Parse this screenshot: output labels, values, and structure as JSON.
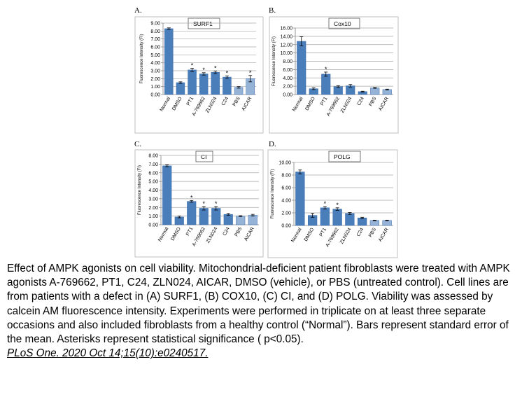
{
  "caption": {
    "text": "Effect of AMPK agonists on cell viability. Mitochondrial-deficient patient fibroblasts were treated with AMPK agonists A-769662, PT1, C24, ZLN024, AICAR, DMSO (vehicle), or PBS (untreated control). Cell lines are from patients with a defect in (A) SURF1, (B) COX10, (C) CI, and (D) POLG. Viability was assessed by calcein AM fluorescence intensity. Experiments were performed in triplicate on at least three separate occasions and also included fibroblasts from a healthy control (“Normal”). Bars represent standard error of the mean. Asterisks represent statistical significance ( p<0.05).",
    "citation": "PLoS One. 2020 Oct 14;15(10):e0240517."
  },
  "colors": {
    "dark_bar": "#4a7ebb",
    "light_bar": "#95b3d7",
    "axis": "#808080",
    "grid": "#a6a6a6",
    "border": "#bfbfbf"
  },
  "chart_data": [
    {
      "panel": "A.",
      "type": "bar",
      "title": "SURF1",
      "ylabel": "Fluorescence Intensity (FI)",
      "ylim": [
        0,
        9
      ],
      "yticks": [
        "0.00",
        "1.00",
        "2.00",
        "3.00",
        "4.00",
        "5.00",
        "6.00",
        "7.00",
        "8.00",
        "9.00"
      ],
      "categories": [
        "Normal",
        "DMSO",
        "PT1",
        "A-769662",
        "ZLN024",
        "C24",
        "PBS",
        "AICAR"
      ],
      "values": [
        8.3,
        1.5,
        3.1,
        2.6,
        2.8,
        2.2,
        0.9,
        2.0
      ],
      "errors": [
        0.1,
        0.1,
        0.2,
        0.15,
        0.15,
        0.15,
        0.1,
        0.4
      ],
      "significant": [
        false,
        false,
        true,
        true,
        true,
        true,
        false,
        true
      ],
      "shade": [
        "dark",
        "dark",
        "dark",
        "dark",
        "dark",
        "dark",
        "light",
        "light"
      ]
    },
    {
      "panel": "B.",
      "type": "bar",
      "title": "Cox10",
      "ylabel": "Fluorescence Intensity (FI)",
      "ylim": [
        0,
        16
      ],
      "yticks": [
        "0.00",
        "2.00",
        "4.00",
        "6.00",
        "8.00",
        "10.00",
        "12.00",
        "14.00",
        "16.00"
      ],
      "categories": [
        "Normal",
        "DMSO",
        "PT1",
        "A-769662",
        "ZLN024",
        "C24",
        "PBS",
        "AICAR"
      ],
      "values": [
        12.8,
        1.4,
        4.9,
        1.9,
        2.1,
        0.7,
        1.6,
        1.2
      ],
      "errors": [
        1.1,
        0.2,
        0.5,
        0.2,
        0.3,
        0.1,
        0.1,
        0.1
      ],
      "significant": [
        false,
        false,
        true,
        false,
        false,
        false,
        false,
        false
      ],
      "shade": [
        "dark",
        "dark",
        "dark",
        "dark",
        "dark",
        "dark",
        "light",
        "light"
      ]
    },
    {
      "panel": "C.",
      "type": "bar",
      "title": "CI",
      "ylabel": "Fluorescence Intensity (FI)",
      "ylim": [
        0,
        8
      ],
      "yticks": [
        "0.00",
        "1.00",
        "2.00",
        "3.00",
        "4.00",
        "5.00",
        "6.00",
        "7.00",
        "8.00"
      ],
      "categories": [
        "Normal",
        "DMSO",
        "PT1",
        "A-769662",
        "ZLN024",
        "C24",
        "PBS",
        "AICAR"
      ],
      "values": [
        6.8,
        0.9,
        2.7,
        1.9,
        1.9,
        1.2,
        1.0,
        1.1
      ],
      "errors": [
        0.1,
        0.1,
        0.1,
        0.2,
        0.2,
        0.1,
        0.05,
        0.1
      ],
      "significant": [
        false,
        false,
        true,
        true,
        true,
        false,
        false,
        false
      ],
      "shade": [
        "dark",
        "dark",
        "dark",
        "dark",
        "dark",
        "dark",
        "light",
        "light"
      ]
    },
    {
      "panel": "D.",
      "type": "bar",
      "title": "POLG",
      "ylabel": "Fluorescence Intensity (FI)",
      "ylim": [
        0,
        10
      ],
      "yticks": [
        "0.00",
        "2.00",
        "4.00",
        "6.00",
        "8.00",
        "10.00"
      ],
      "categories": [
        "Normal",
        "DMSO",
        "PT1",
        "A-769662",
        "ZLN024",
        "C24",
        "PBS",
        "AICAR"
      ],
      "values": [
        8.5,
        1.6,
        2.8,
        2.6,
        1.9,
        1.2,
        0.8,
        0.8
      ],
      "errors": [
        0.3,
        0.3,
        0.2,
        0.2,
        0.15,
        0.1,
        0.05,
        0.05
      ],
      "significant": [
        false,
        false,
        true,
        true,
        false,
        false,
        false,
        false
      ],
      "shade": [
        "dark",
        "dark",
        "dark",
        "dark",
        "dark",
        "dark",
        "light",
        "light"
      ]
    }
  ]
}
